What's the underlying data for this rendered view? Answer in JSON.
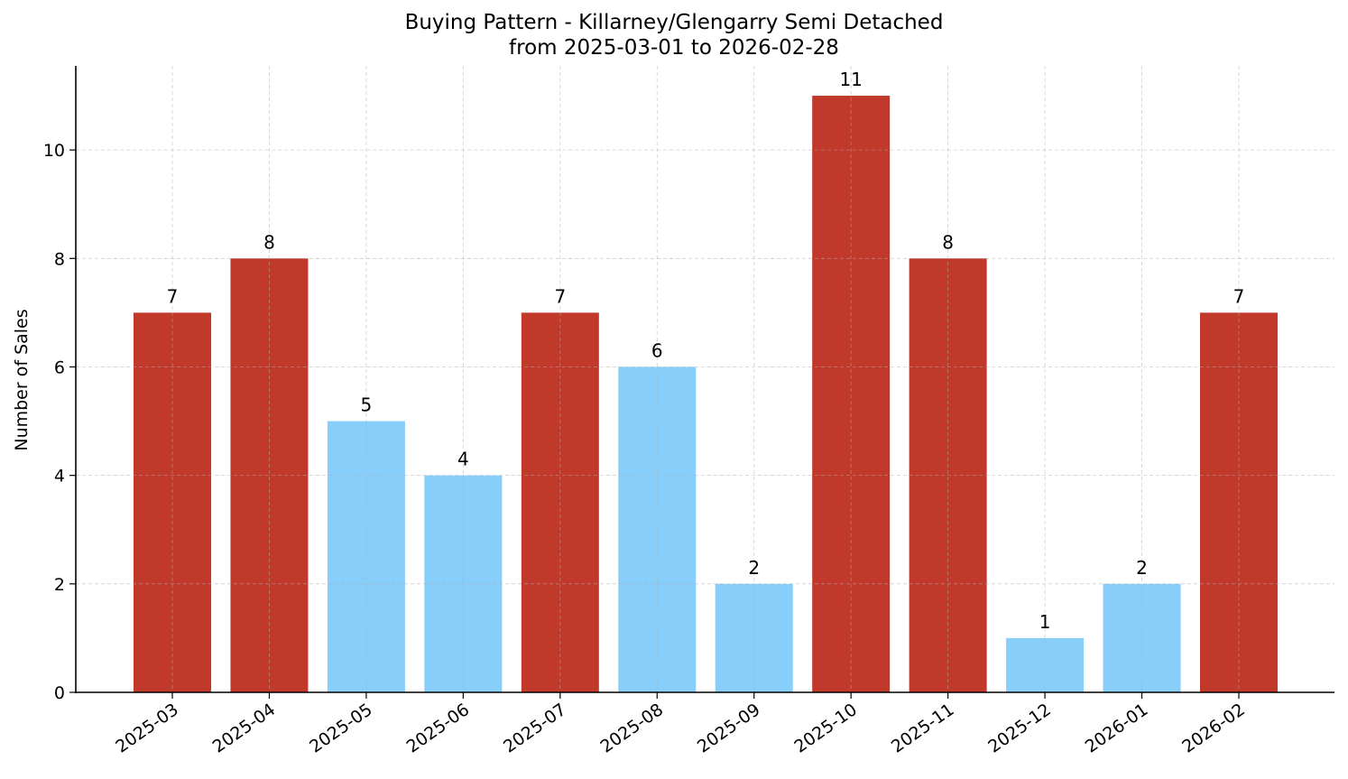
{
  "chart_data": {
    "type": "bar",
    "title": "Buying Pattern - Killarney/Glengarry Semi Detached",
    "subtitle": "from 2025-03-01 to 2026-02-28",
    "xlabel": "",
    "ylabel": "Number of Sales",
    "categories": [
      "2025-03",
      "2025-04",
      "2025-05",
      "2025-06",
      "2025-07",
      "2025-08",
      "2025-09",
      "2025-10",
      "2025-11",
      "2025-12",
      "2026-01",
      "2026-02"
    ],
    "values": [
      7,
      8,
      5,
      4,
      7,
      6,
      2,
      11,
      8,
      1,
      2,
      7
    ],
    "bar_colors": [
      "#c0392b",
      "#c0392b",
      "#87cefa",
      "#87cefa",
      "#c0392b",
      "#87cefa",
      "#87cefa",
      "#c0392b",
      "#c0392b",
      "#87cefa",
      "#87cefa",
      "#c0392b"
    ],
    "data_labels": [
      "7",
      "8",
      "5",
      "4",
      "7",
      "6",
      "2",
      "11",
      "8",
      "1",
      "2",
      "7"
    ],
    "ylim": [
      0,
      11.55
    ],
    "yticks": [
      0,
      2,
      4,
      6,
      8,
      10
    ],
    "grid": true,
    "legend": null,
    "colors": {
      "high": "#c0392b",
      "low": "#87cefa"
    }
  }
}
